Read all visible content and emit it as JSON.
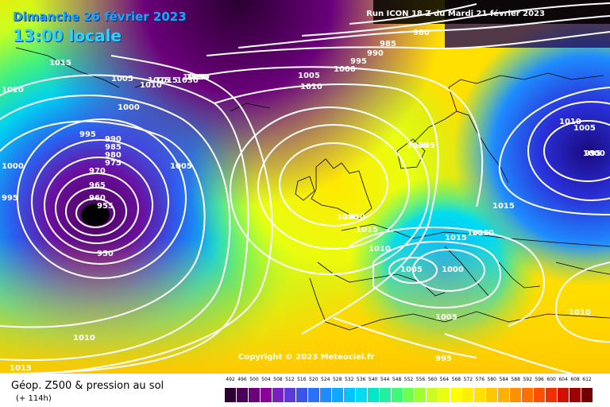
{
  "header": {
    "date": "Dimanche 26 février 2023",
    "time": "13:00 locale",
    "run": "Run ICON 18 Z du Mardi 21 février 2023"
  },
  "copyright": "Copyright © 2023 Meteociel.fr",
  "footer": {
    "title": "Géop. Z500 & pression au sol",
    "subtitle": "(+ 114h)"
  },
  "isobar_labels": [
    "980",
    "985",
    "990",
    "995",
    "1000",
    "1005",
    "1010",
    "1015",
    "1020",
    "1025",
    "1030",
    "1015",
    "1010",
    "1005",
    "1000",
    "995",
    "990",
    "985",
    "980",
    "975",
    "970",
    "965",
    "960",
    "955",
    "950",
    "1015",
    "1010",
    "1005",
    "1000",
    "995",
    "1010",
    "1015",
    "1020",
    "1015",
    "1010",
    "1005",
    "1000",
    "1015",
    "1010",
    "1005",
    "1010",
    "1015",
    "1020",
    "1005",
    "995",
    "1010",
    "1005",
    "1015",
    "995",
    "1000",
    "1005",
    "1010"
  ],
  "scale": {
    "labels": [
      "492",
      "496",
      "500",
      "504",
      "508",
      "512",
      "516",
      "520",
      "524",
      "528",
      "532",
      "536",
      "540",
      "544",
      "548",
      "552",
      "556",
      "560",
      "564",
      "568",
      "572",
      "576",
      "580",
      "584",
      "588",
      "592",
      "596",
      "600",
      "604",
      "608",
      "612"
    ],
    "colors": [
      "#2b0030",
      "#4a0058",
      "#6a007a",
      "#8a009a",
      "#7a20c0",
      "#5a3ad8",
      "#3a55ec",
      "#2a70f8",
      "#1e8cff",
      "#10a8ff",
      "#00c4ff",
      "#00dcf0",
      "#00e8c8",
      "#20f0a0",
      "#40f878",
      "#70ff50",
      "#a0ff30",
      "#c8ff20",
      "#e8ff10",
      "#ffff00",
      "#fff000",
      "#ffe000",
      "#ffc800",
      "#ffb000",
      "#ff9000",
      "#ff7000",
      "#ff5000",
      "#f03000",
      "#d01000",
      "#a00000",
      "#700000"
    ]
  }
}
